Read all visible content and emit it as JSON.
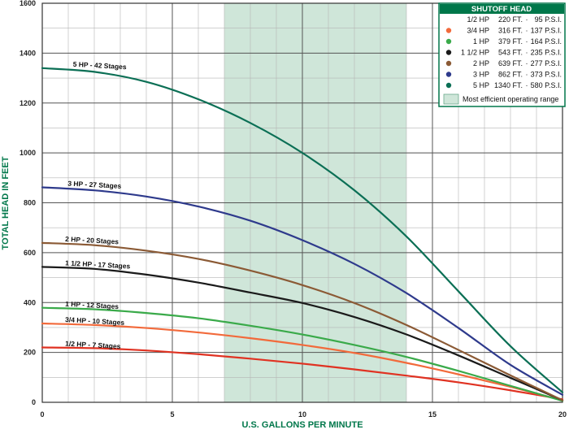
{
  "colors": {
    "grid": "#8a8a8a",
    "axis_title": "#00774a",
    "efficient_range": "#cfe6d9",
    "legend_header": "#00774a",
    "legend_border": "#00774a"
  },
  "chart_data": {
    "type": "line",
    "xlabel": "U.S. GALLONS PER MINUTE",
    "ylabel": "TOTAL HEAD IN FEET",
    "xlim": [
      0,
      20
    ],
    "ylim": [
      0,
      1600
    ],
    "x_ticks": [
      0,
      5,
      10,
      15,
      20
    ],
    "y_ticks": [
      0,
      200,
      400,
      600,
      800,
      1000,
      1200,
      1400,
      1600
    ],
    "x_minor_step": 1,
    "y_minor_step": 100,
    "grid": true,
    "legend_position": "top-right",
    "efficient_range": {
      "x_start": 7,
      "x_end": 14,
      "label": "Most efficient operating range"
    },
    "series": [
      {
        "name": "1/2 HP - 7 Stages",
        "color": "#e03222",
        "x": [
          0,
          2,
          4,
          6,
          8,
          10,
          12,
          14,
          16,
          18,
          20
        ],
        "y": [
          220,
          217,
          208,
          193,
          175,
          155,
          132,
          107,
          80,
          48,
          12
        ]
      },
      {
        "name": "3/4 HP - 10 Stages",
        "color": "#f26a3b",
        "x": [
          0,
          2,
          4,
          6,
          8,
          10,
          12,
          14,
          16,
          18,
          20
        ],
        "y": [
          316,
          310,
          298,
          280,
          257,
          230,
          198,
          158,
          112,
          62,
          8
        ]
      },
      {
        "name": "1 HP - 12 Stages",
        "color": "#3aaa4a",
        "x": [
          0,
          2,
          4,
          6,
          8,
          10,
          12,
          14,
          16,
          18,
          20
        ],
        "y": [
          379,
          373,
          358,
          337,
          307,
          272,
          230,
          182,
          126,
          66,
          6
        ]
      },
      {
        "name": "1 1/2 HP - 17 Stages",
        "color": "#1a1a1a",
        "x": [
          0,
          2,
          4,
          6,
          8,
          10,
          12,
          14,
          16,
          18,
          20
        ],
        "y": [
          543,
          535,
          512,
          480,
          440,
          398,
          342,
          272,
          188,
          98,
          8
        ]
      },
      {
        "name": "2 HP - 20 Stages",
        "color": "#8b5a35",
        "x": [
          0,
          2,
          4,
          6,
          8,
          10,
          12,
          14,
          16,
          18,
          20
        ],
        "y": [
          639,
          630,
          608,
          575,
          528,
          470,
          398,
          310,
          210,
          108,
          8
        ]
      },
      {
        "name": "3 HP - 27 Stages",
        "color": "#2e3a8c",
        "x": [
          0,
          2,
          4,
          6,
          8,
          10,
          12,
          14,
          16,
          18,
          20
        ],
        "y": [
          862,
          850,
          825,
          785,
          728,
          650,
          555,
          438,
          298,
          150,
          30
        ]
      },
      {
        "name": "5 HP - 42 Stages",
        "color": "#0b6f55",
        "x": [
          0,
          2,
          4,
          6,
          8,
          10,
          12,
          14,
          16,
          18,
          20
        ],
        "y": [
          1340,
          1325,
          1285,
          1215,
          1120,
          1000,
          850,
          665,
          445,
          225,
          40
        ]
      }
    ],
    "curve_labels": [
      {
        "text": "5 HP - 42 Stages",
        "x": 0.8,
        "y": 1340
      },
      {
        "text": "3 HP - 27 Stages",
        "x": 0.6,
        "y": 862
      },
      {
        "text": "2 HP - 20 Stages",
        "x": 0.5,
        "y": 639
      },
      {
        "text": "1 1/2 HP - 17 Stages",
        "x": 0.5,
        "y": 543
      },
      {
        "text": "1 HP - 12 Stages",
        "x": 0.5,
        "y": 379
      },
      {
        "text": "3/4 HP - 10 Stages",
        "x": 0.5,
        "y": 316
      },
      {
        "text": "1/2 HP - 7 Stages",
        "x": 0.5,
        "y": 220
      }
    ]
  },
  "legend": {
    "title": "SHUTOFF HEAD",
    "rows": [
      {
        "hp": "1/2 HP",
        "feet": "220 FT.",
        "psi": "95 P.S.I.",
        "color": ""
      },
      {
        "hp": "3/4 HP",
        "feet": "316 FT.",
        "psi": "137 P.S.I.",
        "color": "#f26a3b"
      },
      {
        "hp": "1 HP",
        "feet": "379 FT.",
        "psi": "164 P.S.I.",
        "color": "#3aaa4a"
      },
      {
        "hp": "1 1/2 HP",
        "feet": "543 FT.",
        "psi": "235 P.S.I.",
        "color": "#1a1a1a"
      },
      {
        "hp": "2 HP",
        "feet": "639 FT.",
        "psi": "277 P.S.I.",
        "color": "#8b5a35"
      },
      {
        "hp": "3 HP",
        "feet": "862 FT.",
        "psi": "373 P.S.I.",
        "color": "#2e3a8c"
      },
      {
        "hp": "5 HP",
        "feet": "1340 FT.",
        "psi": "580 P.S.I.",
        "color": "#0b6f55"
      }
    ],
    "range_label": "Most efficient operating range"
  }
}
